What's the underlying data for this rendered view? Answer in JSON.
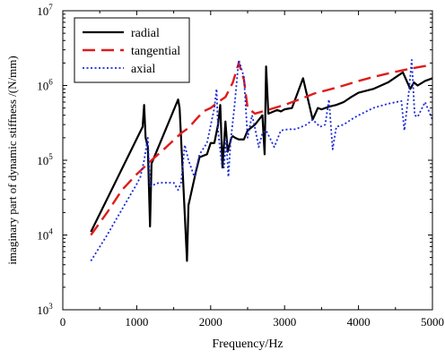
{
  "chart_data": {
    "type": "line",
    "xlabel": "Frequency/Hz",
    "ylabel": "imaginary part of dynamic stiffness /(N/mm)",
    "xlim": [
      0,
      5000
    ],
    "ylim": [
      1000,
      10000000
    ],
    "yscale": "log",
    "grid": false,
    "legend_position": "top-left",
    "x_ticks": [
      0,
      1000,
      2000,
      3000,
      4000,
      5000
    ],
    "x_tick_labels": [
      "0",
      "1000",
      "2000",
      "3000",
      "4000",
      "5000"
    ],
    "y_ticks": [
      1000,
      10000,
      100000,
      1000000,
      10000000
    ],
    "y_tick_labels": [
      {
        "base": "10",
        "exp": "3"
      },
      {
        "base": "10",
        "exp": "4"
      },
      {
        "base": "10",
        "exp": "5"
      },
      {
        "base": "10",
        "exp": "6"
      },
      {
        "base": "10",
        "exp": "7"
      }
    ],
    "series": [
      {
        "name": "radial",
        "color": "#000000",
        "style": "solid",
        "points": [
          [
            380,
            11000
          ],
          [
            1080,
            280000
          ],
          [
            1100,
            550000
          ],
          [
            1120,
            200000
          ],
          [
            1150,
            150000
          ],
          [
            1180,
            13000
          ],
          [
            1200,
            90000
          ],
          [
            1560,
            650000
          ],
          [
            1580,
            500000
          ],
          [
            1640,
            30000
          ],
          [
            1680,
            4500
          ],
          [
            1700,
            25000
          ],
          [
            1800,
            70000
          ],
          [
            1850,
            110000
          ],
          [
            1950,
            120000
          ],
          [
            2000,
            170000
          ],
          [
            2050,
            170000
          ],
          [
            2100,
            300000
          ],
          [
            2130,
            550000
          ],
          [
            2160,
            80000
          ],
          [
            2200,
            330000
          ],
          [
            2230,
            130000
          ],
          [
            2280,
            200000
          ],
          [
            2300,
            210000
          ],
          [
            2330,
            200000
          ],
          [
            2380,
            190000
          ],
          [
            2450,
            190000
          ],
          [
            2500,
            250000
          ],
          [
            2600,
            300000
          ],
          [
            2700,
            400000
          ],
          [
            2730,
            120000
          ],
          [
            2750,
            1800000
          ],
          [
            2780,
            420000
          ],
          [
            2900,
            470000
          ],
          [
            2950,
            450000
          ],
          [
            3000,
            480000
          ],
          [
            3100,
            500000
          ],
          [
            3250,
            1250000
          ],
          [
            3380,
            350000
          ],
          [
            3450,
            500000
          ],
          [
            3500,
            480000
          ],
          [
            3600,
            520000
          ],
          [
            3700,
            550000
          ],
          [
            3800,
            600000
          ],
          [
            3900,
            700000
          ],
          [
            4000,
            800000
          ],
          [
            4200,
            900000
          ],
          [
            4400,
            1100000
          ],
          [
            4600,
            1500000
          ],
          [
            4700,
            900000
          ],
          [
            4750,
            1100000
          ],
          [
            4800,
            1000000
          ],
          [
            4900,
            1150000
          ],
          [
            5000,
            1250000
          ]
        ]
      },
      {
        "name": "tangential",
        "color": "#e01b1b",
        "style": "dashed",
        "points": [
          [
            380,
            10000
          ],
          [
            600,
            20000
          ],
          [
            800,
            40000
          ],
          [
            1000,
            65000
          ],
          [
            1200,
            100000
          ],
          [
            1400,
            150000
          ],
          [
            1600,
            230000
          ],
          [
            1700,
            270000
          ],
          [
            1800,
            350000
          ],
          [
            1900,
            450000
          ],
          [
            2000,
            500000
          ],
          [
            2100,
            600000
          ],
          [
            2200,
            700000
          ],
          [
            2300,
            1100000
          ],
          [
            2380,
            2000000
          ],
          [
            2450,
            1200000
          ],
          [
            2500,
            500000
          ],
          [
            2600,
            420000
          ],
          [
            2800,
            480000
          ],
          [
            3000,
            550000
          ],
          [
            3200,
            650000
          ],
          [
            3400,
            780000
          ],
          [
            3600,
            880000
          ],
          [
            3800,
            1000000
          ],
          [
            4000,
            1150000
          ],
          [
            4200,
            1300000
          ],
          [
            4400,
            1450000
          ],
          [
            4600,
            1600000
          ],
          [
            4800,
            1750000
          ],
          [
            5000,
            1900000
          ]
        ]
      },
      {
        "name": "axial",
        "color": "#1b2bd6",
        "style": "dotted",
        "points": [
          [
            380,
            4500
          ],
          [
            600,
            10000
          ],
          [
            800,
            22000
          ],
          [
            1000,
            48000
          ],
          [
            1050,
            60000
          ],
          [
            1100,
            100000
          ],
          [
            1150,
            200000
          ],
          [
            1180,
            45000
          ],
          [
            1300,
            50000
          ],
          [
            1500,
            50000
          ],
          [
            1560,
            40000
          ],
          [
            1600,
            50000
          ],
          [
            1650,
            160000
          ],
          [
            1700,
            100000
          ],
          [
            1780,
            60000
          ],
          [
            1850,
            120000
          ],
          [
            1950,
            170000
          ],
          [
            2050,
            500000
          ],
          [
            2080,
            900000
          ],
          [
            2100,
            250000
          ],
          [
            2150,
            90000
          ],
          [
            2180,
            80000
          ],
          [
            2210,
            190000
          ],
          [
            2240,
            60000
          ],
          [
            2270,
            180000
          ],
          [
            2320,
            500000
          ],
          [
            2380,
            2200000
          ],
          [
            2450,
            1300000
          ],
          [
            2500,
            200000
          ],
          [
            2560,
            400000
          ],
          [
            2600,
            270000
          ],
          [
            2650,
            150000
          ],
          [
            2700,
            230000
          ],
          [
            2750,
            250000
          ],
          [
            2800,
            200000
          ],
          [
            2860,
            150000
          ],
          [
            2950,
            250000
          ],
          [
            3050,
            260000
          ],
          [
            3150,
            260000
          ],
          [
            3300,
            300000
          ],
          [
            3380,
            350000
          ],
          [
            3480,
            280000
          ],
          [
            3550,
            300000
          ],
          [
            3600,
            650000
          ],
          [
            3650,
            140000
          ],
          [
            3700,
            280000
          ],
          [
            3800,
            300000
          ],
          [
            3900,
            350000
          ],
          [
            4000,
            400000
          ],
          [
            4200,
            500000
          ],
          [
            4400,
            570000
          ],
          [
            4580,
            620000
          ],
          [
            4620,
            250000
          ],
          [
            4680,
            800000
          ],
          [
            4720,
            2200000
          ],
          [
            4760,
            400000
          ],
          [
            4800,
            380000
          ],
          [
            4900,
            600000
          ],
          [
            5000,
            350000
          ]
        ]
      }
    ]
  }
}
